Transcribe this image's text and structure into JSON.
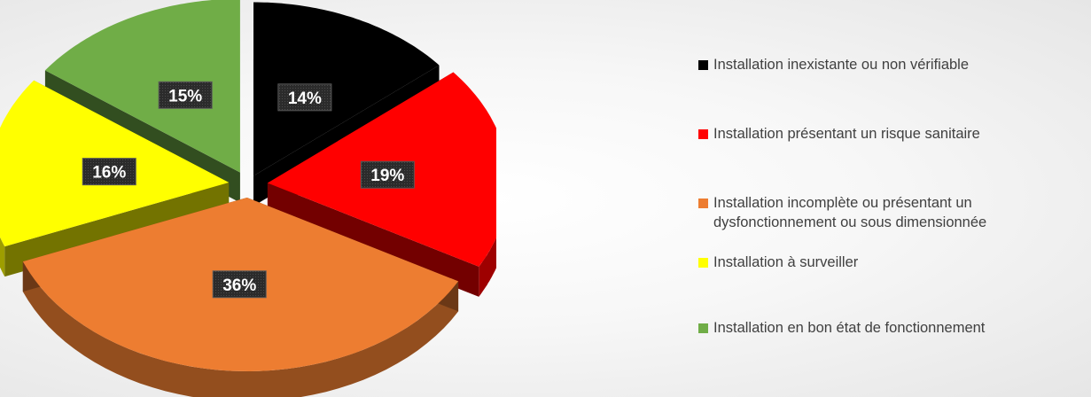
{
  "chart_data": {
    "type": "pie",
    "variant": "3d-exploded",
    "title": "",
    "slices": [
      {
        "label": "Installation inexistante ou non vérifiable",
        "value": 14,
        "display": "14%",
        "color": "#000000"
      },
      {
        "label": "Installation présentant un risque sanitaire",
        "value": 19,
        "display": "19%",
        "color": "#ff0000"
      },
      {
        "label": "Installation incomplète ou présentant un dysfonctionnement ou sous dimensionnée",
        "value": 36,
        "display": "36%",
        "color": "#ed7d31"
      },
      {
        "label": "Installation à surveiller",
        "value": 16,
        "display": "16%",
        "color": "#ffff00"
      },
      {
        "label": "Installation en bon état de fonctionnement",
        "value": 15,
        "display": "15%",
        "color": "#70ad47"
      }
    ],
    "legend": {
      "position": "right",
      "items": [
        "Installation inexistante ou non vérifiable",
        "Installation présentant un risque sanitaire",
        "Installation incomplète ou présentant un dysfonctionnement ou sous dimensionnée",
        "Installation à surveiller",
        "Installation en bon état de fonctionnement"
      ]
    }
  }
}
